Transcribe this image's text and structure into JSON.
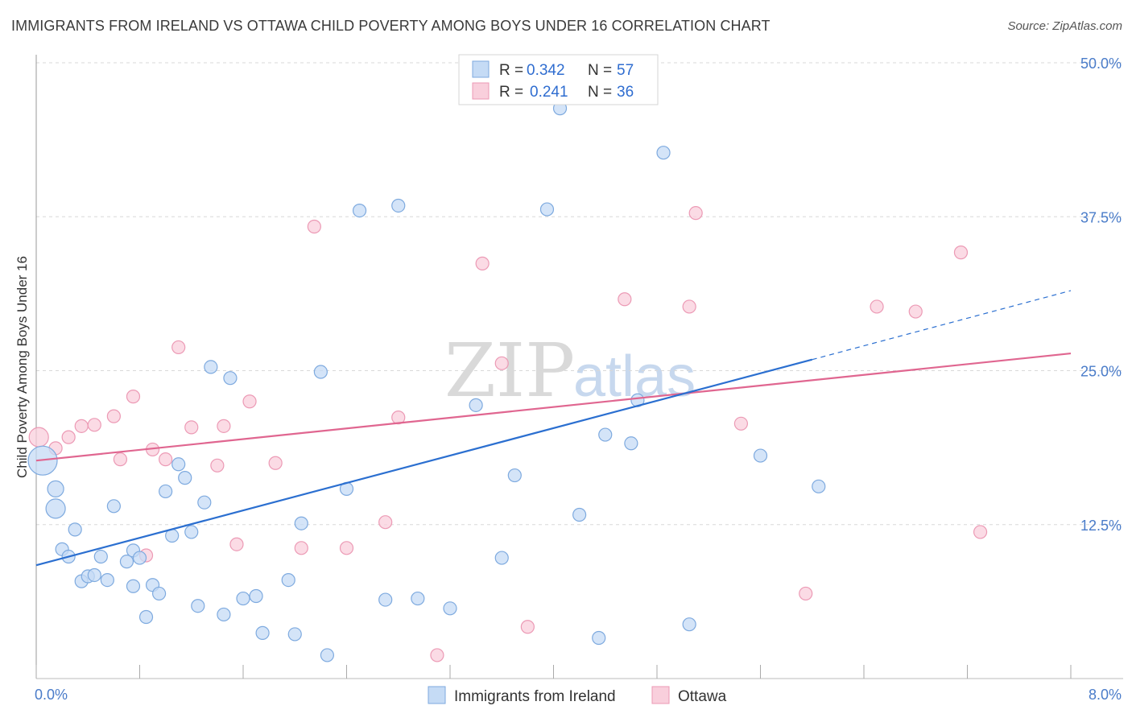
{
  "title": "IMMIGRANTS FROM IRELAND VS OTTAWA CHILD POVERTY AMONG BOYS UNDER 16 CORRELATION CHART",
  "source": "Source: ZipAtlas.com",
  "watermark": {
    "zip": "ZIP",
    "atlas": "atlas"
  },
  "colors": {
    "blue_fill": "#c5dbf5",
    "blue_stroke": "#7eaadf",
    "blue_line": "#2b6fd0",
    "pink_fill": "#f9cfdc",
    "pink_stroke": "#ec9ab5",
    "pink_line": "#e06690",
    "grid": "#d8d8d8",
    "tick_text": "#4a7cc9"
  },
  "legend_top": {
    "rows": [
      {
        "r_label": "R =",
        "r_value": "0.342",
        "n_label": "N =",
        "n_value": "57",
        "series": "blue"
      },
      {
        "r_label": "R =",
        "r_value": "0.241",
        "n_label": "N =",
        "n_value": "36",
        "series": "pink"
      }
    ]
  },
  "chart_data": {
    "type": "scatter",
    "title": "IMMIGRANTS FROM IRELAND VS OTTAWA CHILD POVERTY AMONG BOYS UNDER 16 CORRELATION CHART",
    "xlabel": "",
    "ylabel": "Child Poverty Among Boys Under 16",
    "xlim": [
      0,
      8
    ],
    "ylim": [
      0,
      50
    ],
    "x_tick_labels": [
      "0.0%",
      "8.0%"
    ],
    "y_ticks": [
      12.5,
      25.0,
      37.5,
      50.0
    ],
    "y_tick_labels": [
      "12.5%",
      "25.0%",
      "37.5%",
      "50.0%"
    ],
    "grid": true,
    "legend_placement": "bottom-center",
    "series": [
      {
        "name": "Immigrants from Ireland",
        "color": "blue",
        "trend": {
          "x0": 0,
          "y0": 9.2,
          "x1": 6.0,
          "y1": 25.9,
          "dash_x1": 8.0,
          "dash_y1": 31.5
        },
        "points": [
          [
            0.05,
            17.7,
            18
          ],
          [
            0.15,
            13.8,
            12
          ],
          [
            0.15,
            15.4,
            10
          ],
          [
            0.2,
            10.5,
            8
          ],
          [
            0.25,
            9.9,
            8
          ],
          [
            0.3,
            12.1,
            8
          ],
          [
            0.35,
            7.9,
            8
          ],
          [
            0.4,
            8.3,
            8
          ],
          [
            0.45,
            8.4,
            8
          ],
          [
            0.5,
            9.9,
            8
          ],
          [
            0.55,
            8.0,
            8
          ],
          [
            0.6,
            14.0,
            8
          ],
          [
            0.7,
            9.5,
            8
          ],
          [
            0.75,
            7.5,
            8
          ],
          [
            0.75,
            10.4,
            8
          ],
          [
            0.8,
            9.8,
            8
          ],
          [
            0.85,
            5.0,
            8
          ],
          [
            0.9,
            7.6,
            8
          ],
          [
            0.95,
            6.9,
            8
          ],
          [
            1.0,
            15.2,
            8
          ],
          [
            1.05,
            11.6,
            8
          ],
          [
            1.1,
            17.4,
            8
          ],
          [
            1.15,
            16.3,
            8
          ],
          [
            1.2,
            11.9,
            8
          ],
          [
            1.25,
            5.9,
            8
          ],
          [
            1.3,
            14.3,
            8
          ],
          [
            1.35,
            25.3,
            8
          ],
          [
            1.45,
            5.2,
            8
          ],
          [
            1.5,
            24.4,
            8
          ],
          [
            1.6,
            6.5,
            8
          ],
          [
            1.7,
            6.7,
            8
          ],
          [
            1.75,
            3.7,
            8
          ],
          [
            1.95,
            8.0,
            8
          ],
          [
            2.0,
            3.6,
            8
          ],
          [
            2.05,
            12.6,
            8
          ],
          [
            2.2,
            24.9,
            8
          ],
          [
            2.25,
            1.9,
            8
          ],
          [
            2.4,
            15.4,
            8
          ],
          [
            2.5,
            38.0,
            8
          ],
          [
            2.7,
            6.4,
            8
          ],
          [
            2.8,
            38.4,
            8
          ],
          [
            2.95,
            6.5,
            8
          ],
          [
            3.2,
            5.7,
            8
          ],
          [
            3.4,
            22.2,
            8
          ],
          [
            3.6,
            9.8,
            8
          ],
          [
            3.7,
            16.5,
            8
          ],
          [
            3.95,
            38.1,
            8
          ],
          [
            4.05,
            46.3,
            8
          ],
          [
            4.2,
            13.3,
            8
          ],
          [
            4.35,
            3.3,
            8
          ],
          [
            4.4,
            19.8,
            8
          ],
          [
            4.6,
            19.1,
            8
          ],
          [
            4.65,
            22.6,
            8
          ],
          [
            4.85,
            42.7,
            8
          ],
          [
            5.05,
            4.4,
            8
          ],
          [
            5.6,
            18.1,
            8
          ],
          [
            6.05,
            15.6,
            8
          ]
        ]
      },
      {
        "name": "Ottawa",
        "color": "pink",
        "trend": {
          "x0": 0,
          "y0": 17.7,
          "x1": 8.0,
          "y1": 26.4
        },
        "points": [
          [
            0.02,
            19.6,
            12
          ],
          [
            0.15,
            18.7,
            8
          ],
          [
            0.25,
            19.6,
            8
          ],
          [
            0.35,
            20.5,
            8
          ],
          [
            0.45,
            20.6,
            8
          ],
          [
            0.6,
            21.3,
            8
          ],
          [
            0.65,
            17.8,
            8
          ],
          [
            0.75,
            22.9,
            8
          ],
          [
            0.85,
            10.0,
            8
          ],
          [
            0.9,
            18.6,
            8
          ],
          [
            1.0,
            17.8,
            8
          ],
          [
            1.1,
            26.9,
            8
          ],
          [
            1.2,
            20.4,
            8
          ],
          [
            1.4,
            17.3,
            8
          ],
          [
            1.45,
            20.5,
            8
          ],
          [
            1.55,
            10.9,
            8
          ],
          [
            1.65,
            22.5,
            8
          ],
          [
            1.85,
            17.5,
            8
          ],
          [
            2.05,
            10.6,
            8
          ],
          [
            2.15,
            36.7,
            8
          ],
          [
            2.4,
            10.6,
            8
          ],
          [
            2.7,
            12.7,
            8
          ],
          [
            2.8,
            21.2,
            8
          ],
          [
            3.1,
            1.9,
            8
          ],
          [
            3.45,
            33.7,
            8
          ],
          [
            3.6,
            25.6,
            8
          ],
          [
            3.8,
            4.2,
            8
          ],
          [
            4.55,
            30.8,
            8
          ],
          [
            5.05,
            30.2,
            8
          ],
          [
            5.1,
            37.8,
            8
          ],
          [
            5.45,
            20.7,
            8
          ],
          [
            5.95,
            6.9,
            8
          ],
          [
            6.5,
            30.2,
            8
          ],
          [
            6.8,
            29.8,
            8
          ],
          [
            7.15,
            34.6,
            8
          ],
          [
            7.3,
            11.9,
            8
          ]
        ]
      }
    ]
  },
  "legend_bottom": [
    {
      "label": "Immigrants from Ireland",
      "series": "blue"
    },
    {
      "label": "Ottawa",
      "series": "pink"
    }
  ]
}
